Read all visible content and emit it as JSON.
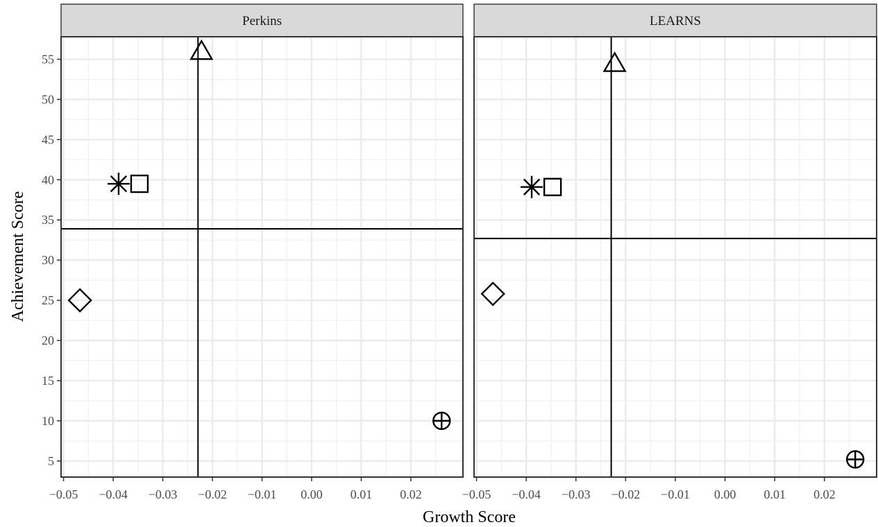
{
  "chart_data": {
    "type": "scatter",
    "xlabel": "Growth Score",
    "ylabel": "Achievement Score",
    "xlim": [
      -0.0505,
      0.0305
    ],
    "ylim": [
      3,
      57.8
    ],
    "x_ticks": [
      -0.05,
      -0.04,
      -0.03,
      -0.02,
      -0.01,
      0.0,
      0.01,
      0.02
    ],
    "x_tick_labels": [
      "−0.05",
      "−0.04",
      "−0.03",
      "−0.02",
      "−0.01",
      "0.00",
      "0.01",
      "0.02"
    ],
    "y_ticks": [
      5,
      10,
      15,
      20,
      25,
      30,
      35,
      40,
      45,
      50,
      55
    ],
    "y_tick_labels": [
      "5",
      "10",
      "15",
      "20",
      "25",
      "30",
      "35",
      "40",
      "45",
      "50",
      "55"
    ],
    "grid": true,
    "legend": "none",
    "panels": [
      {
        "facet": "Perkins",
        "vline": -0.0229,
        "hline": 33.9,
        "points": [
          {
            "shape": "triangle",
            "x": -0.0222,
            "y": 55.8
          },
          {
            "shape": "asterisk",
            "x": -0.0389,
            "y": 39.5
          },
          {
            "shape": "square",
            "x": -0.0347,
            "y": 39.5
          },
          {
            "shape": "diamond",
            "x": -0.0467,
            "y": 25.0
          },
          {
            "shape": "circle-plus",
            "x": 0.0262,
            "y": 10.0
          }
        ]
      },
      {
        "facet": "LEARNS",
        "vline": -0.0229,
        "hline": 32.7,
        "points": [
          {
            "shape": "triangle",
            "x": -0.0222,
            "y": 54.3
          },
          {
            "shape": "asterisk",
            "x": -0.0389,
            "y": 39.1
          },
          {
            "shape": "square",
            "x": -0.0347,
            "y": 39.1
          },
          {
            "shape": "diamond",
            "x": -0.0467,
            "y": 25.8
          },
          {
            "shape": "circle-plus",
            "x": 0.0262,
            "y": 5.2
          }
        ]
      }
    ]
  }
}
